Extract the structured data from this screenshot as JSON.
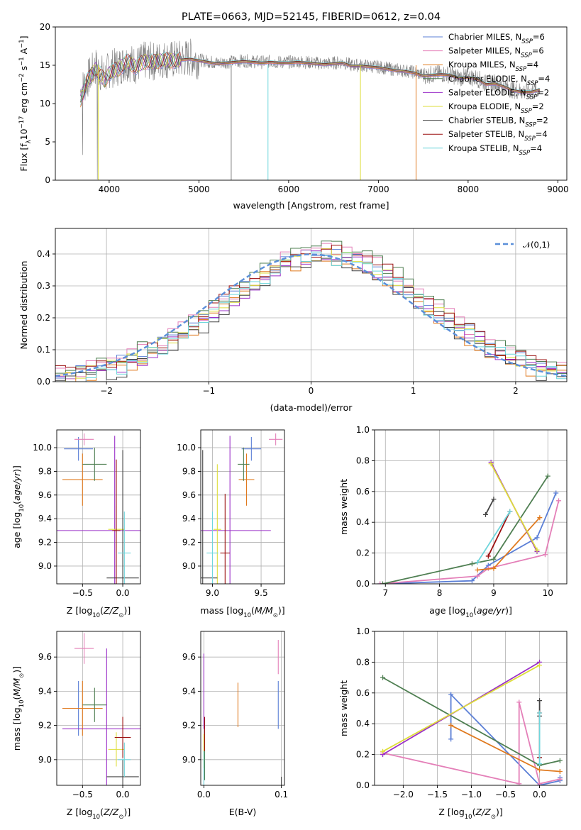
{
  "colors": {
    "Chabrier MILES": "#5b7fd6",
    "Salpeter MILES": "#e47fb8",
    "Kroupa MILES": "#e07a1f",
    "Chabrier ELODIE": "#4f7f52",
    "Salpeter ELODIE": "#9b30c8",
    "Kroupa ELODIE": "#dede3a",
    "Chabrier STELIB": "#444444",
    "Salpeter STELIB": "#9b1010",
    "Kroupa STELIB": "#6fd6dc"
  },
  "chart_data": [
    {
      "id": "spectrum",
      "type": "line",
      "title": "PLATE=0663, MJD=52145, FIBERID=0612, z=0.04",
      "xlabel": "wavelength [Angstrom, rest frame]",
      "ylabel": "Flux [f",
      "ylabel_parts": [
        "Flux [f",
        "λ",
        "10",
        "−17",
        " erg cm",
        "−2",
        " s",
        "−1",
        " A",
        "−1",
        "]"
      ],
      "xlim": [
        3400,
        9100
      ],
      "ylim": [
        0,
        20
      ],
      "xticks": [
        4000,
        5000,
        6000,
        7000,
        8000,
        9000
      ],
      "yticks": [
        0,
        5,
        10,
        15,
        20
      ],
      "legend_position": "top-right",
      "legend": [
        {
          "name": "Chabrier MILES",
          "nssp": "6"
        },
        {
          "name": "Salpeter MILES",
          "nssp": "6"
        },
        {
          "name": "Kroupa MILES",
          "nssp": "4"
        },
        {
          "name": "Chabrier ELODIE",
          "nssp": "4"
        },
        {
          "name": "Salpeter ELODIE",
          "nssp": "2"
        },
        {
          "name": "Kroupa ELODIE",
          "nssp": "2"
        },
        {
          "name": "Chabrier STELIB",
          "nssp": "2"
        },
        {
          "name": "Salpeter STELIB",
          "nssp": "4"
        },
        {
          "name": "Kroupa STELIB",
          "nssp": "4"
        }
      ],
      "legend_prefix": "N",
      "legend_sub": "SSP",
      "data_series": {
        "name": "data",
        "color": "#7f7f7f",
        "x": [
          3680,
          3750,
          3850,
          3950,
          4000,
          4100,
          4200,
          4300,
          4400,
          4500,
          4600,
          4700,
          4800,
          4900,
          5000,
          5100,
          5200,
          5300,
          5400,
          5500,
          5600,
          5700,
          5800,
          5900,
          6000,
          6100,
          6200,
          6300,
          6400,
          6500,
          6600,
          6700,
          6800,
          6900,
          7000,
          7100,
          7200,
          7300,
          7400,
          7500,
          7600,
          7700,
          7800,
          7900,
          8000,
          8100,
          8200,
          8300,
          8400,
          8500,
          8600,
          8700,
          8800
        ],
        "y": [
          11.5,
          13.0,
          14.8,
          13.5,
          14.5,
          14.8,
          15.5,
          15.0,
          15.6,
          15.5,
          15.8,
          15.7,
          15.8,
          16.0,
          15.7,
          15.5,
          15.3,
          15.4,
          15.5,
          15.6,
          15.5,
          15.4,
          15.5,
          15.4,
          15.4,
          15.5,
          15.4,
          15.3,
          15.2,
          15.3,
          15.4,
          15.0,
          15.0,
          14.9,
          14.8,
          14.6,
          14.4,
          14.3,
          14.1,
          13.7,
          13.8,
          13.9,
          13.8,
          13.4,
          13.5,
          13.3,
          12.6,
          12.7,
          12.3,
          11.8,
          11.6,
          11.6,
          11.9
        ]
      },
      "model_series": {
        "name": "Kroupa STELIB",
        "x": [
          3680,
          3750,
          3850,
          3950,
          4000,
          4100,
          4200,
          4300,
          4400,
          4500,
          4600,
          4700,
          4800,
          4900,
          5000,
          5100,
          5200,
          5300,
          5400,
          5500,
          5600,
          5700,
          5800,
          5900,
          6000,
          6100,
          6200,
          6300,
          6400,
          6500,
          6600,
          6700,
          6800,
          6900,
          7000,
          7100,
          7200,
          7300,
          7400,
          7500,
          7600,
          7700,
          7800,
          7900,
          8000,
          8100,
          8200,
          8300,
          8400,
          8500,
          8600,
          8700,
          8800
        ],
        "y": [
          10.5,
          12.8,
          14.5,
          13.0,
          14.0,
          14.5,
          15.5,
          14.8,
          15.5,
          15.4,
          15.7,
          15.6,
          15.7,
          15.8,
          15.6,
          15.4,
          15.2,
          15.3,
          15.4,
          15.5,
          15.4,
          15.3,
          15.4,
          15.3,
          15.3,
          15.4,
          15.3,
          15.2,
          15.1,
          15.2,
          15.3,
          14.9,
          14.9,
          14.8,
          14.7,
          14.5,
          14.3,
          14.2,
          14.0,
          13.6,
          13.7,
          13.8,
          13.7,
          13.3,
          13.4,
          13.2,
          12.5,
          12.6,
          12.2,
          11.7,
          11.5,
          11.5,
          11.8
        ]
      }
    },
    {
      "id": "residuals",
      "type": "histogram",
      "xlabel": "(data-model)/error",
      "ylabel": "Normed distribution",
      "xlim": [
        -2.5,
        2.5
      ],
      "ylim": [
        0,
        0.48
      ],
      "xticks": [
        -2,
        -1,
        0,
        1,
        2
      ],
      "yticks": [
        0.0,
        0.1,
        0.2,
        0.3,
        0.4
      ],
      "grid": true,
      "legend_position": "top-right",
      "legend_label": "𝒩(0,1)",
      "curve": {
        "type": "normal",
        "mean": 0,
        "sigma": 1,
        "color": "#5b8fd9"
      },
      "bin_width": 0.1,
      "bins_start": -2.5,
      "series": [
        {
          "name": "Chabrier MILES",
          "offset": 0.01
        },
        {
          "name": "Salpeter MILES",
          "offset": 0.025
        },
        {
          "name": "Kroupa MILES",
          "offset": -0.02
        },
        {
          "name": "Chabrier ELODIE",
          "offset": 0.035
        },
        {
          "name": "Salpeter ELODIE",
          "offset": -0.01
        },
        {
          "name": "Kroupa ELODIE",
          "offset": 0.005
        },
        {
          "name": "Chabrier STELIB",
          "offset": -0.03
        },
        {
          "name": "Salpeter STELIB",
          "offset": 0.02
        },
        {
          "name": "Kroupa STELIB",
          "offset": -0.015
        }
      ]
    },
    {
      "id": "age-vs-Z",
      "type": "scatter",
      "xlabel": "Z [log10(Z/Z⊙)]",
      "ylabel": "age  [log10(age/yr)]",
      "xlim": [
        -0.82,
        0.22
      ],
      "ylim": [
        8.85,
        10.15
      ],
      "xticks": [
        -0.5,
        0.0
      ],
      "yticks": [
        9.0,
        9.2,
        9.4,
        9.6,
        9.8,
        10.0
      ],
      "grid": true,
      "points": [
        {
          "name": "Chabrier MILES",
          "x": -0.55,
          "y": 9.99,
          "xerr": 0.18,
          "yerr": 0.1
        },
        {
          "name": "Salpeter MILES",
          "x": -0.48,
          "y": 10.07,
          "xerr": 0.12,
          "yerr": 0.05
        },
        {
          "name": "Kroupa MILES",
          "x": -0.5,
          "y": 9.73,
          "xerr": 0.25,
          "yerr": 0.22
        },
        {
          "name": "Chabrier ELODIE",
          "x": -0.35,
          "y": 9.86,
          "xerr": 0.15,
          "yerr": 0.14
        },
        {
          "name": "Salpeter ELODIE",
          "x": -0.1,
          "y": 9.3,
          "xerr": 0.72,
          "yerr": 0.8
        },
        {
          "name": "Kroupa ELODIE",
          "x": -0.08,
          "y": 9.31,
          "xerr": 0.1,
          "yerr": 0.2
        },
        {
          "name": "Chabrier STELIB",
          "x": 0.0,
          "y": 8.9,
          "xerr": 0.2,
          "yerr": 1.08
        },
        {
          "name": "Salpeter STELIB",
          "x": -0.08,
          "y": 9.3,
          "xerr": 0.05,
          "yerr": 0.6
        },
        {
          "name": "Kroupa STELIB",
          "x": 0.02,
          "y": 9.11,
          "xerr": 0.08,
          "yerr": 0.35
        }
      ]
    },
    {
      "id": "age-vs-mass",
      "type": "scatter",
      "xlabel": "mass [log10(M/M⊙)]",
      "ylabel": "",
      "xlim": [
        8.88,
        9.74
      ],
      "ylim": [
        8.85,
        10.15
      ],
      "xticks": [
        9.0,
        9.5
      ],
      "yticks": [
        9.0,
        9.2,
        9.4,
        9.6,
        9.8,
        10.0
      ],
      "grid": true,
      "points": [
        {
          "name": "Chabrier MILES",
          "x": 9.4,
          "y": 9.99,
          "xerr": 0.1,
          "yerr": 0.1
        },
        {
          "name": "Salpeter MILES",
          "x": 9.65,
          "y": 10.07,
          "xerr": 0.07,
          "yerr": 0.05
        },
        {
          "name": "Kroupa MILES",
          "x": 9.35,
          "y": 9.73,
          "xerr": 0.08,
          "yerr": 0.22
        },
        {
          "name": "Chabrier ELODIE",
          "x": 9.32,
          "y": 9.86,
          "xerr": 0.06,
          "yerr": 0.14
        },
        {
          "name": "Salpeter ELODIE",
          "x": 9.18,
          "y": 9.3,
          "xerr": 0.42,
          "yerr": 0.8
        },
        {
          "name": "Kroupa ELODIE",
          "x": 9.05,
          "y": 9.31,
          "xerr": 0.04,
          "yerr": 0.55
        },
        {
          "name": "Chabrier STELIB",
          "x": 8.9,
          "y": 8.9,
          "xerr": 0.15,
          "yerr": 1.08
        },
        {
          "name": "Salpeter STELIB",
          "x": 9.13,
          "y": 9.11,
          "xerr": 0.05,
          "yerr": 0.5
        },
        {
          "name": "Kroupa STELIB",
          "x": 9.0,
          "y": 9.11,
          "xerr": 0.06,
          "yerr": 0.35
        }
      ]
    },
    {
      "id": "massweight-vs-age",
      "type": "line",
      "xlabel": "age  [log10(age/yr)]",
      "ylabel": "mass weight",
      "xlim": [
        6.8,
        10.35
      ],
      "ylim": [
        0,
        1.0
      ],
      "xticks": [
        7,
        8,
        9,
        10
      ],
      "yticks": [
        0.0,
        0.2,
        0.4,
        0.6,
        0.8,
        1.0
      ],
      "grid": true,
      "series": [
        {
          "name": "Chabrier MILES",
          "x": [
            6.9,
            8.6,
            8.9,
            9.8,
            10.15
          ],
          "y": [
            0.0,
            0.02,
            0.12,
            0.3,
            0.59
          ]
        },
        {
          "name": "Salpeter MILES",
          "x": [
            6.9,
            8.7,
            8.9,
            9.95,
            10.2
          ],
          "y": [
            0.0,
            0.05,
            0.1,
            0.19,
            0.54
          ]
        },
        {
          "name": "Kroupa MILES",
          "x": [
            8.7,
            9.0,
            9.85
          ],
          "y": [
            0.09,
            0.1,
            0.43
          ]
        },
        {
          "name": "Chabrier ELODIE",
          "x": [
            6.95,
            8.6,
            9.0,
            10.0
          ],
          "y": [
            0.0,
            0.13,
            0.16,
            0.7
          ]
        },
        {
          "name": "Salpeter ELODIE",
          "x": [
            8.95,
            9.8
          ],
          "y": [
            0.79,
            0.21
          ]
        },
        {
          "name": "Kroupa ELODIE",
          "x": [
            8.95,
            9.8
          ],
          "y": [
            0.78,
            0.22
          ]
        },
        {
          "name": "Chabrier STELIB",
          "x": [
            8.85,
            9.0
          ],
          "y": [
            0.45,
            0.55
          ]
        },
        {
          "name": "Salpeter STELIB",
          "x": [
            8.9,
            9.3
          ],
          "y": [
            0.18,
            0.47
          ]
        },
        {
          "name": "Kroupa STELIB",
          "x": [
            8.7,
            9.3
          ],
          "y": [
            0.14,
            0.47
          ]
        }
      ]
    },
    {
      "id": "mass-vs-Z",
      "type": "scatter",
      "xlabel": "Z [log10(Z/Z⊙)]",
      "ylabel": "mass [log10(M/M⊙)]",
      "xlim": [
        -0.82,
        0.22
      ],
      "ylim": [
        8.85,
        9.75
      ],
      "xticks": [
        -0.5,
        0.0
      ],
      "yticks": [
        9.0,
        9.2,
        9.4,
        9.6
      ],
      "grid": true,
      "points": [
        {
          "name": "Chabrier MILES",
          "x": -0.55,
          "y": 9.3,
          "xerr": 0.18,
          "yerr": 0.16
        },
        {
          "name": "Salpeter MILES",
          "x": -0.48,
          "y": 9.65,
          "xerr": 0.12,
          "yerr": 0.09
        },
        {
          "name": "Kroupa MILES",
          "x": -0.5,
          "y": 9.3,
          "xerr": 0.25,
          "yerr": 0.16
        },
        {
          "name": "Chabrier ELODIE",
          "x": -0.35,
          "y": 9.32,
          "xerr": 0.15,
          "yerr": 0.1
        },
        {
          "name": "Salpeter ELODIE",
          "x": -0.2,
          "y": 9.18,
          "xerr": 0.55,
          "yerr": 0.47
        },
        {
          "name": "Kroupa ELODIE",
          "x": -0.08,
          "y": 9.06,
          "xerr": 0.1,
          "yerr": 0.1
        },
        {
          "name": "Chabrier STELIB",
          "x": 0.0,
          "y": 8.9,
          "xerr": 0.2,
          "yerr": 0.1
        },
        {
          "name": "Salpeter STELIB",
          "x": 0.0,
          "y": 9.13,
          "xerr": 0.1,
          "yerr": 0.12
        },
        {
          "name": "Kroupa STELIB",
          "x": 0.02,
          "y": 9.0,
          "xerr": 0.08,
          "yerr": 0.1
        }
      ]
    },
    {
      "id": "mass-vs-ebv",
      "type": "scatter",
      "xlabel": "E(B-V)",
      "ylabel": "",
      "xlim": [
        -0.004,
        0.104
      ],
      "ylim": [
        8.85,
        9.75
      ],
      "xticks": [
        0.0,
        0.1
      ],
      "yticks": [
        9.0,
        9.2,
        9.4,
        9.6
      ],
      "grid": true,
      "points": [
        {
          "name": "Chabrier MILES",
          "x": 0.096,
          "y": 9.32,
          "xerr": 0.0,
          "yerr": 0.14
        },
        {
          "name": "Salpeter MILES",
          "x": 0.096,
          "y": 9.6,
          "xerr": 0.0,
          "yerr": 0.1
        },
        {
          "name": "Kroupa MILES",
          "x": 0.044,
          "y": 9.32,
          "xerr": 0.0,
          "yerr": 0.13
        },
        {
          "name": "Chabrier ELODIE",
          "x": 0.001,
          "y": 9.0,
          "xerr": 0.0,
          "yerr": 0.12
        },
        {
          "name": "Salpeter ELODIE",
          "x": 0.0,
          "y": 9.4,
          "xerr": 0.0,
          "yerr": 0.22
        },
        {
          "name": "Kroupa ELODIE",
          "x": 0.0,
          "y": 9.05,
          "xerr": 0.0,
          "yerr": 0.1
        },
        {
          "name": "Chabrier STELIB",
          "x": 0.1,
          "y": 8.8,
          "xerr": 0.0,
          "yerr": 0.1
        },
        {
          "name": "Salpeter STELIB",
          "x": 0.001,
          "y": 9.15,
          "xerr": 0.0,
          "yerr": 0.1
        },
        {
          "name": "Kroupa STELIB",
          "x": 0.0,
          "y": 8.95,
          "xerr": 0.0,
          "yerr": 0.1
        }
      ]
    },
    {
      "id": "massweight-vs-Z",
      "type": "line",
      "xlabel": "Z [log10(Z/Z⊙)]",
      "ylabel": "mass weight",
      "xlim": [
        -2.42,
        0.4
      ],
      "ylim": [
        0,
        1.0
      ],
      "xticks": [
        -2.0,
        -1.5,
        -1.0,
        -0.5,
        0.0
      ],
      "yticks": [
        0.0,
        0.2,
        0.4,
        0.6,
        0.8,
        1.0
      ],
      "grid": true,
      "series": [
        {
          "name": "Chabrier MILES",
          "x": [
            -1.3,
            -1.3,
            0.0,
            0.3,
            0.3
          ],
          "y": [
            0.3,
            0.59,
            0.0,
            0.03,
            0.05
          ]
        },
        {
          "name": "Salpeter MILES",
          "x": [
            -2.3,
            -0.3,
            -0.3,
            0.0,
            0.3
          ],
          "y": [
            0.21,
            0.01,
            0.54,
            0.01,
            0.04
          ]
        },
        {
          "name": "Kroupa MILES",
          "x": [
            -1.3,
            0.0,
            0.3
          ],
          "y": [
            0.39,
            0.1,
            0.09
          ]
        },
        {
          "name": "Chabrier ELODIE",
          "x": [
            -2.3,
            0.0,
            0.3
          ],
          "y": [
            0.7,
            0.13,
            0.16
          ]
        },
        {
          "name": "Salpeter ELODIE",
          "x": [
            -2.3,
            0.0
          ],
          "y": [
            0.2,
            0.8
          ]
        },
        {
          "name": "Kroupa ELODIE",
          "x": [
            -2.3,
            0.0
          ],
          "y": [
            0.22,
            0.78
          ]
        },
        {
          "name": "Chabrier STELIB",
          "x": [
            0.0,
            0.0
          ],
          "y": [
            0.45,
            0.55
          ]
        },
        {
          "name": "Salpeter STELIB",
          "x": [
            0.0,
            0.0
          ],
          "y": [
            0.18,
            0.47
          ]
        },
        {
          "name": "Kroupa STELIB",
          "x": [
            0.0,
            0.0
          ],
          "y": [
            0.14,
            0.47
          ]
        }
      ]
    }
  ]
}
